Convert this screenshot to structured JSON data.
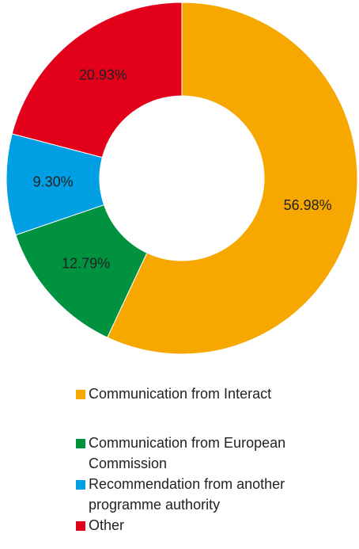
{
  "chart_data": {
    "type": "donut",
    "categories": [
      "Communication from Interact",
      "Communication from European Commission",
      "Recommendation from another programme authority",
      "Other"
    ],
    "values": [
      56.98,
      12.79,
      9.3,
      20.93
    ],
    "value_labels": [
      "56.98%",
      "12.79%",
      "9.30%",
      "20.93%"
    ],
    "colors": [
      "#f7a800",
      "#00923f",
      "#009fe3",
      "#e2001a"
    ]
  }
}
